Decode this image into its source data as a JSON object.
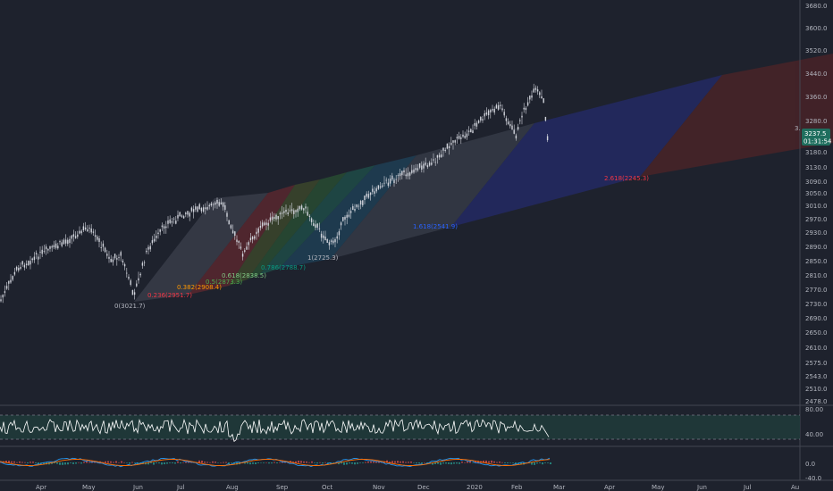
{
  "price_axis": {
    "labels": [
      "3680.0",
      "3600.0",
      "3520.0",
      "3440.0",
      "3360.0",
      "3280.0",
      "3180.0",
      "3130.0",
      "3090.0",
      "3050.0",
      "3010.0",
      "2970.0",
      "2930.0",
      "2890.0",
      "2850.0",
      "2810.0",
      "2770.0",
      "2730.0",
      "2690.0",
      "2650.0",
      "2610.0",
      "2575.0",
      "2543.0",
      "2510.0",
      "2478.0"
    ],
    "current_price": "3237.5",
    "countdown": "01:31:54",
    "edge_label": "3."
  },
  "rsi_axis": {
    "labels": [
      "80.00",
      "40.00"
    ]
  },
  "macd_axis": {
    "labels": [
      "0.0",
      "-40.0"
    ]
  },
  "time_axis": {
    "labels": [
      "Apr",
      "May",
      "Jun",
      "Jul",
      "Aug",
      "Sep",
      "Oct",
      "Nov",
      "Dec",
      "2020",
      "Feb",
      "Mar",
      "Apr",
      "May",
      "Jun",
      "Jul",
      "Au"
    ]
  },
  "fib_labels": [
    {
      "text": "0(3021.7)",
      "color": "#b2b5be"
    },
    {
      "text": "0.236(2951.7)",
      "color": "#f23645"
    },
    {
      "text": "0.382(2908.4)",
      "color": "#ff9800"
    },
    {
      "text": "0.5(2873.3)",
      "color": "#4caf50"
    },
    {
      "text": "0.618(2838.5)",
      "color": "#81c784"
    },
    {
      "text": "0.786(2788.7)",
      "color": "#089981"
    },
    {
      "text": "1(2725.3)",
      "color": "#b2b5be"
    },
    {
      "text": "1.618(2541.9)",
      "color": "#2962ff"
    },
    {
      "text": "2.618(2245.3)",
      "color": "#f23645"
    }
  ],
  "colors": {
    "background": "#1e222d",
    "candle": "#d1d4dc",
    "rsi_line": "#ffffff",
    "rsi_band": "#20403f",
    "macd_line": "#2196f3",
    "signal_line": "#ff6d00",
    "current_price_tag": "#1f6e5e"
  }
}
